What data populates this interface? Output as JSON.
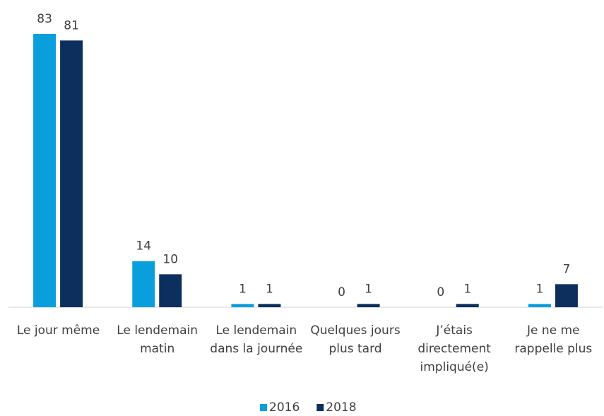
{
  "chart_data": {
    "type": "bar",
    "categories": [
      "Le jour même",
      "Le lendemain matin",
      "Le lendemain dans la journée",
      "Quelques jours plus tard",
      "J’étais directement impliqué(e)",
      "Je ne me rappelle plus"
    ],
    "series": [
      {
        "name": "2016",
        "color": "#0a9fdc",
        "values": [
          83,
          14,
          1,
          0,
          0,
          1
        ]
      },
      {
        "name": "2018",
        "color": "#0d2f5e",
        "values": [
          81,
          10,
          1,
          1,
          1,
          7
        ]
      }
    ],
    "legend": "bottom"
  }
}
